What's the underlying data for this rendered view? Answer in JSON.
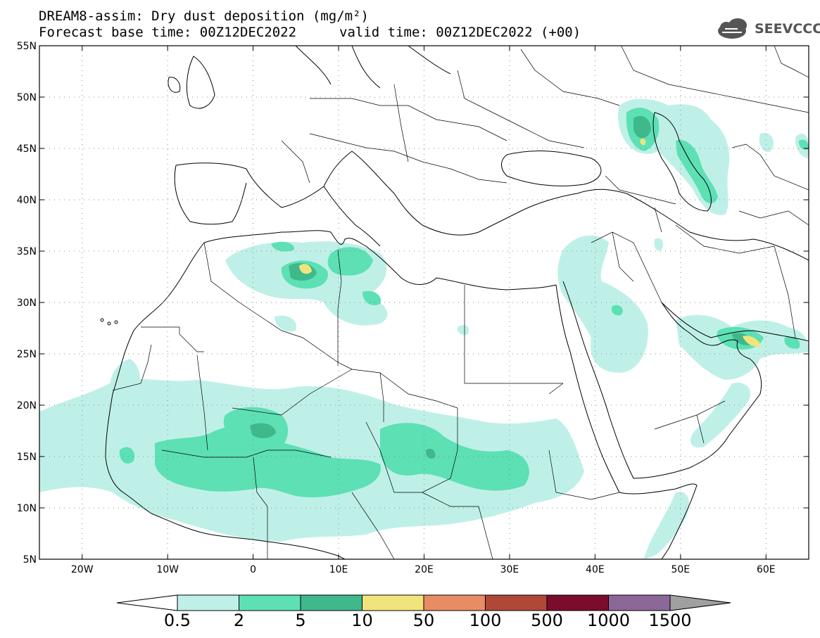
{
  "title": {
    "line1": "DREAM8-assim: Dry dust deposition (mg/m²)",
    "line2": "Forecast base time: 00Z12DEC2022",
    "line2b": "valid time: 00Z12DEC2022 (+00)"
  },
  "logo": {
    "text": "SEEVCCC",
    "icon": "cloud-logo-icon"
  },
  "map": {
    "lon_range": [
      -25,
      65
    ],
    "lat_range": [
      5,
      55
    ],
    "lat_ticks": [
      {
        "value": 55,
        "label": "55N"
      },
      {
        "value": 50,
        "label": "50N"
      },
      {
        "value": 45,
        "label": "45N"
      },
      {
        "value": 40,
        "label": "40N"
      },
      {
        "value": 35,
        "label": "35N"
      },
      {
        "value": 30,
        "label": "30N"
      },
      {
        "value": 25,
        "label": "25N"
      },
      {
        "value": 20,
        "label": "20N"
      },
      {
        "value": 15,
        "label": "15N"
      },
      {
        "value": 10,
        "label": "10N"
      },
      {
        "value": 5,
        "label": "5N"
      }
    ],
    "lon_ticks": [
      {
        "value": -20,
        "label": "20W"
      },
      {
        "value": -10,
        "label": "10W"
      },
      {
        "value": 0,
        "label": "0"
      },
      {
        "value": 10,
        "label": "10E"
      },
      {
        "value": 20,
        "label": "20E"
      },
      {
        "value": 30,
        "label": "30E"
      },
      {
        "value": 40,
        "label": "40E"
      },
      {
        "value": 50,
        "label": "50E"
      },
      {
        "value": 60,
        "label": "60E"
      }
    ],
    "grid": true,
    "colorbar": {
      "levels": [
        "0.5",
        "2",
        "5",
        "10",
        "50",
        "100",
        "500",
        "1000",
        "1500"
      ],
      "colors": [
        "#ffffff",
        "#bff0e8",
        "#5ce0b4",
        "#3fb88c",
        "#f0e47c",
        "#e88c64",
        "#b04838",
        "#7c0c2c",
        "#8c6898",
        "#a0a0a0"
      ]
    }
  }
}
